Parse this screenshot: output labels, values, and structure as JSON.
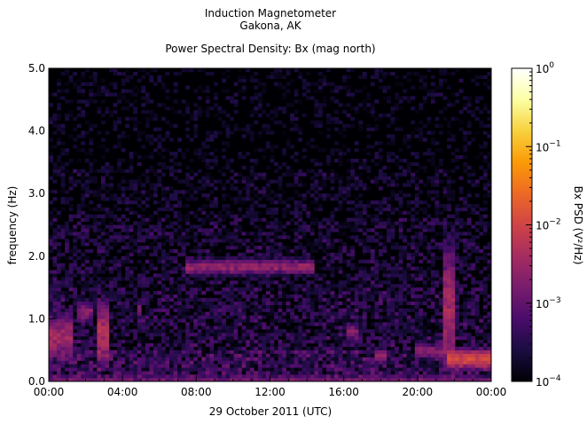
{
  "title_line1": "Induction Magnetometer",
  "title_line2": "Gakona, AK",
  "subtitle": "Power Spectral Density: Bx (mag north)",
  "chart_data": {
    "type": "heatmap",
    "xlabel": "29 October 2011 (UTC)",
    "ylabel": "frequency (Hz)",
    "x_ticks": [
      "00:00",
      "04:00",
      "08:00",
      "12:00",
      "16:00",
      "20:00",
      "00:00"
    ],
    "x_range_hours": [
      0,
      24
    ],
    "y_ticks": [
      "0.0",
      "1.0",
      "2.0",
      "3.0",
      "4.0",
      "5.0"
    ],
    "ylim": [
      0,
      5
    ],
    "colorbar": {
      "label": "Bx PSD (V²/Hz)",
      "scale": "log",
      "range": [
        0.0001,
        1
      ],
      "tick_labels": [
        {
          "value": 1,
          "base": "10",
          "exp": "0"
        },
        {
          "value": 0.1,
          "base": "10",
          "exp": "−1"
        },
        {
          "value": 0.01,
          "base": "10",
          "exp": "−2"
        },
        {
          "value": 0.001,
          "base": "10",
          "exp": "−3"
        },
        {
          "value": 0.0001,
          "base": "10",
          "exp": "−4"
        }
      ],
      "colors": [
        "#000004",
        "#1b0c41",
        "#4a0c6b",
        "#781c6d",
        "#a52c60",
        "#cf4446",
        "#ed6925",
        "#fb9b06",
        "#f7d13d",
        "#fcffa4",
        "#ffffff"
      ]
    },
    "background_noise": [
      {
        "f_max": 0.5,
        "psd": 0.00045
      },
      {
        "f_max": 1.5,
        "psd": 0.00028
      },
      {
        "f_max": 2.6,
        "psd": 0.0002
      },
      {
        "f_max": 3.4,
        "psd": 0.00014
      },
      {
        "f_max": 5.0,
        "psd": 0.0001
      }
    ],
    "features": [
      {
        "t_start": 7.5,
        "t_end": 14.5,
        "f": 1.83,
        "bandwidth": 0.1,
        "psd": 0.003
      },
      {
        "t_start": 0.0,
        "t_end": 1.4,
        "f": 0.7,
        "bandwidth": 0.3,
        "psd": 0.004
      },
      {
        "t_start": 2.7,
        "t_end": 3.3,
        "f": 0.75,
        "bandwidth": 0.4,
        "psd": 0.006
      },
      {
        "t_start": 1.5,
        "t_end": 2.3,
        "f": 1.1,
        "bandwidth": 0.15,
        "psd": 0.002
      },
      {
        "t_start": 4.7,
        "t_end": 5.0,
        "f": 1.15,
        "bandwidth": 0.1,
        "psd": 0.0015
      },
      {
        "t_start": 16.2,
        "t_end": 16.8,
        "f": 0.78,
        "bandwidth": 0.12,
        "psd": 0.002
      },
      {
        "t_start": 17.7,
        "t_end": 18.4,
        "f": 0.42,
        "bandwidth": 0.1,
        "psd": 0.002
      },
      {
        "t_start": 19.9,
        "t_end": 21.5,
        "f": 0.5,
        "bandwidth": 0.1,
        "psd": 0.002
      },
      {
        "t_start": 21.4,
        "t_end": 22.1,
        "f": 1.2,
        "bandwidth": 0.8,
        "psd": 0.004
      },
      {
        "t_start": 21.5,
        "t_end": 24.0,
        "f": 0.36,
        "bandwidth": 0.12,
        "psd": 0.012
      },
      {
        "t_start": 0.0,
        "t_end": 24.0,
        "f": 0.03,
        "bandwidth": 0.06,
        "psd": 0.001
      }
    ]
  }
}
